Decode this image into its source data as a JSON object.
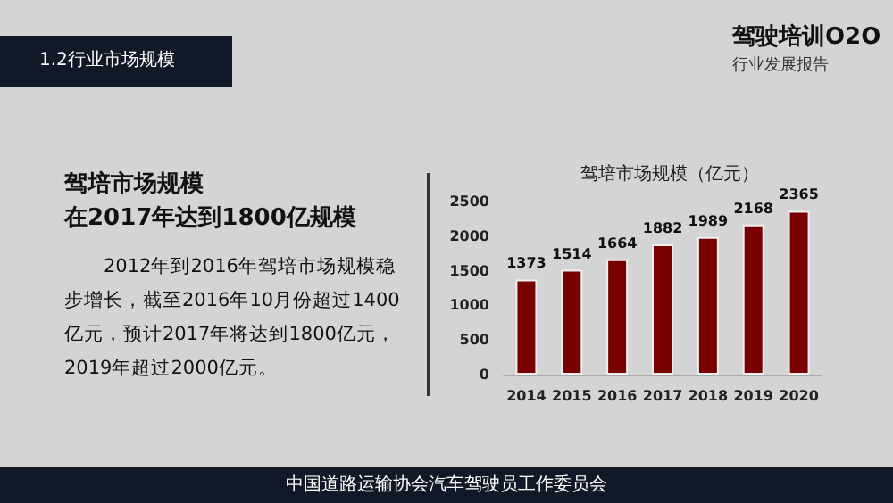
{
  "chart_data": {
    "type": "bar",
    "title": "驾培市场规模（亿元）",
    "categories": [
      "2014",
      "2015",
      "2016",
      "2017",
      "2018",
      "2019",
      "2020"
    ],
    "values": [
      1373,
      1514,
      1664,
      1882,
      1989,
      2168,
      2365
    ],
    "color": "#7a0000",
    "ylim": [
      0,
      2500
    ],
    "yticks": [
      0,
      500,
      1000,
      1500,
      2000,
      2500
    ],
    "grid": false,
    "data_labels": true,
    "annotations": [
      "1.2行业市场规模",
      "驾驶培训O2O",
      "行业发展报告",
      "驾培市场规模",
      "在2017年达到1800亿规模",
      "　　2012年到2016年驾培市场规模稳步增长，截至2016年10月份超过1400亿元，预计2017年将达到1800亿元，2019年超过2000亿元。",
      "中国道路运输协会汽车驾驶员工作委员会"
    ]
  }
}
